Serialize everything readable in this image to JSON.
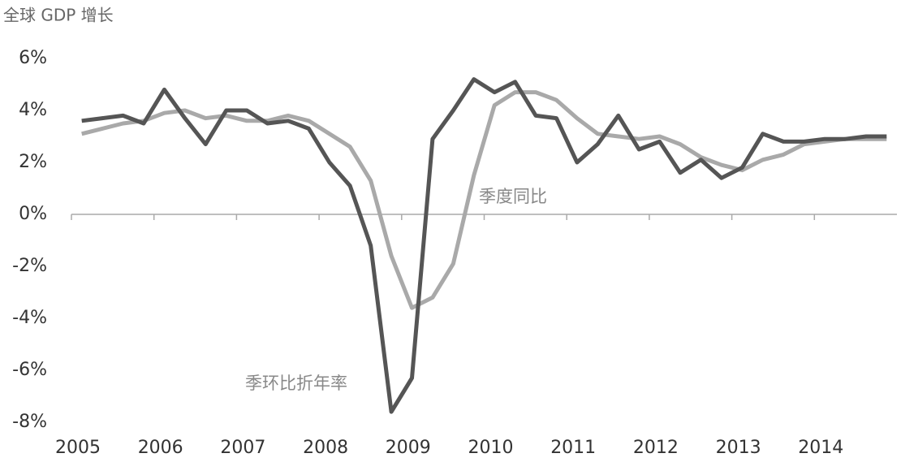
{
  "chart_data": {
    "type": "line",
    "title": "全球 GDP 增长",
    "x": [
      2005.125,
      2005.375,
      2005.625,
      2005.875,
      2006.125,
      2006.375,
      2006.625,
      2006.875,
      2007.125,
      2007.375,
      2007.625,
      2007.875,
      2008.125,
      2008.375,
      2008.625,
      2008.875,
      2009.125,
      2009.375,
      2009.625,
      2009.875,
      2010.125,
      2010.375,
      2010.625,
      2010.875,
      2011.125,
      2011.375,
      2011.625,
      2011.875,
      2012.125,
      2012.375,
      2012.625,
      2012.875,
      2013.125,
      2013.375,
      2013.625,
      2013.875,
      2014.125,
      2014.375,
      2014.625,
      2014.875
    ],
    "series": [
      {
        "name": "季环比折年率",
        "color": "#555555",
        "values": [
          3.6,
          3.7,
          3.8,
          3.5,
          4.8,
          3.7,
          2.7,
          4.0,
          4.0,
          3.5,
          3.6,
          3.3,
          2.0,
          1.1,
          -1.2,
          -7.6,
          -6.3,
          2.9,
          4.0,
          5.2,
          4.7,
          5.1,
          3.8,
          3.7,
          2.0,
          2.7,
          3.8,
          2.5,
          2.8,
          1.6,
          2.1,
          1.4,
          1.8,
          3.1,
          2.8,
          2.8,
          2.9,
          2.9,
          3.0,
          3.0
        ]
      },
      {
        "name": "季度同比",
        "color": "#a9a9a9",
        "values": [
          3.1,
          3.3,
          3.5,
          3.6,
          3.9,
          4.0,
          3.7,
          3.8,
          3.6,
          3.6,
          3.8,
          3.6,
          3.1,
          2.6,
          1.3,
          -1.6,
          -3.6,
          -3.2,
          -1.9,
          1.5,
          4.2,
          4.7,
          4.7,
          4.4,
          3.7,
          3.1,
          3.0,
          2.9,
          3.0,
          2.7,
          2.2,
          1.9,
          1.7,
          2.1,
          2.3,
          2.7,
          2.8,
          2.9,
          2.9,
          2.9
        ]
      }
    ],
    "xlim": [
      2005,
      2015
    ],
    "xticks": [
      2005,
      2006,
      2007,
      2008,
      2009,
      2010,
      2011,
      2012,
      2013,
      2014
    ],
    "ylim": [
      -8,
      6
    ],
    "yticks": [
      {
        "value": 6,
        "label": "6%"
      },
      {
        "value": 4,
        "label": "4%"
      },
      {
        "value": 2,
        "label": "2%"
      },
      {
        "value": 0,
        "label": "0%"
      },
      {
        "value": -2,
        "label": "-2%"
      },
      {
        "value": -4,
        "label": "-4%"
      },
      {
        "value": -6,
        "label": "-6%"
      },
      {
        "value": -8,
        "label": "-8%"
      }
    ],
    "grid": false
  }
}
